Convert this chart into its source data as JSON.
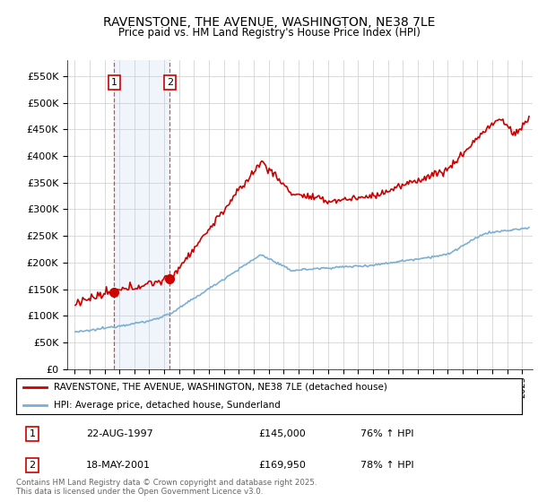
{
  "title": "RAVENSTONE, THE AVENUE, WASHINGTON, NE38 7LE",
  "subtitle": "Price paid vs. HM Land Registry's House Price Index (HPI)",
  "ylabel_ticks": [
    "£0",
    "£50K",
    "£100K",
    "£150K",
    "£200K",
    "£250K",
    "£300K",
    "£350K",
    "£400K",
    "£450K",
    "£500K",
    "£550K"
  ],
  "ylim": [
    0,
    570000
  ],
  "xlim_start": 1994.5,
  "xlim_end": 2025.7,
  "transaction1": {
    "date": "22-AUG-1997",
    "price": 145000,
    "hpi_pct": "76% ↑ HPI",
    "label": "1",
    "x": 1997.64
  },
  "transaction2": {
    "date": "18-MAY-2001",
    "price": 169950,
    "hpi_pct": "78% ↑ HPI",
    "label": "2",
    "x": 2001.38
  },
  "legend_line1": "RAVENSTONE, THE AVENUE, WASHINGTON, NE38 7LE (detached house)",
  "legend_line2": "HPI: Average price, detached house, Sunderland",
  "footer": "Contains HM Land Registry data © Crown copyright and database right 2025.\nThis data is licensed under the Open Government Licence v3.0.",
  "red_color": "#cc0000",
  "blue_color": "#7bafd4",
  "background_color": "#ffffff",
  "grid_color": "#cccccc",
  "vspan_color": "#ddeeff"
}
